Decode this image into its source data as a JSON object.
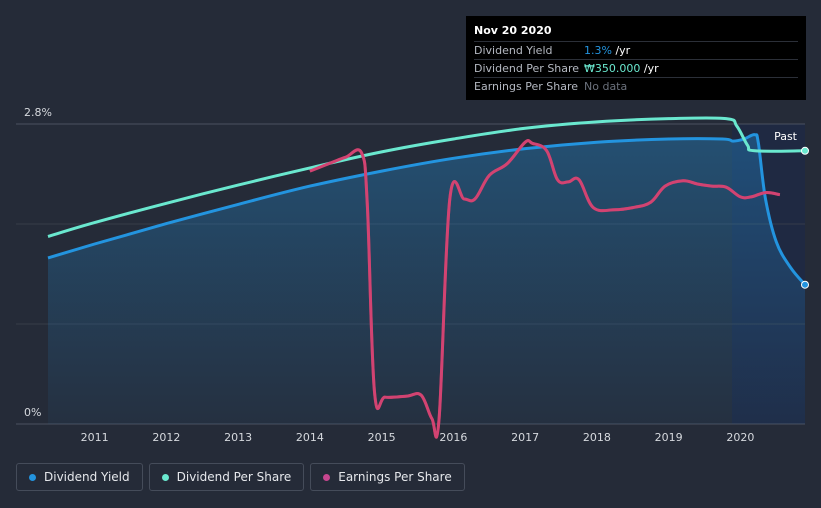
{
  "tooltip": {
    "date": "Nov 20 2020",
    "rows": [
      {
        "label": "Dividend Yield",
        "value": "1.3%",
        "unit": " /yr"
      },
      {
        "label": "Dividend Per Share",
        "value": "₩350.000",
        "unit": " /yr"
      },
      {
        "label": "Earnings Per Share",
        "value": "No data",
        "unit": ""
      }
    ]
  },
  "legend": [
    {
      "label": "Dividend Yield",
      "color": "#2394df"
    },
    {
      "label": "Dividend Per Share",
      "color": "#6ae8cf"
    },
    {
      "label": "Earnings Per Share",
      "color": "#c7468f"
    }
  ],
  "chart_data": {
    "type": "line",
    "title": "",
    "xlabel": "",
    "ylabel": "",
    "past_label": "Past",
    "y_tick_labels": {
      "top": "2.8%",
      "bottom": "0%"
    },
    "ylim": [
      0,
      2.8
    ],
    "xlim": [
      2010.35,
      2020.9
    ],
    "x_ticks": [
      2011,
      2012,
      2013,
      2014,
      2015,
      2016,
      2017,
      2018,
      2019,
      2020
    ],
    "series": [
      {
        "name": "Dividend Yield",
        "color": "#2394df",
        "fill": true,
        "points": [
          [
            2010.35,
            1.55
          ],
          [
            2011,
            1.68
          ],
          [
            2012,
            1.87
          ],
          [
            2013,
            2.05
          ],
          [
            2014,
            2.22
          ],
          [
            2015,
            2.36
          ],
          [
            2016,
            2.48
          ],
          [
            2017,
            2.57
          ],
          [
            2018,
            2.63
          ],
          [
            2019,
            2.66
          ],
          [
            2019.75,
            2.66
          ],
          [
            2019.9,
            2.64
          ],
          [
            2020.05,
            2.66
          ],
          [
            2020.2,
            2.7
          ],
          [
            2020.25,
            2.62
          ],
          [
            2020.35,
            2.1
          ],
          [
            2020.5,
            1.7
          ],
          [
            2020.7,
            1.46
          ],
          [
            2020.9,
            1.3
          ]
        ]
      },
      {
        "name": "Dividend Per Share",
        "color": "#6ae8cf",
        "fill": false,
        "points": [
          [
            2010.35,
            1.75
          ],
          [
            2011,
            1.88
          ],
          [
            2012,
            2.06
          ],
          [
            2013,
            2.23
          ],
          [
            2014,
            2.39
          ],
          [
            2015,
            2.54
          ],
          [
            2016,
            2.66
          ],
          [
            2017,
            2.76
          ],
          [
            2018,
            2.82
          ],
          [
            2019,
            2.85
          ],
          [
            2019.8,
            2.85
          ],
          [
            2019.95,
            2.78
          ],
          [
            2020.1,
            2.6
          ],
          [
            2020.2,
            2.55
          ],
          [
            2020.9,
            2.55
          ]
        ]
      },
      {
        "name": "Earnings Per Share",
        "color": "#c7468f",
        "fill": false,
        "points": [
          [
            2014,
            2.36
          ],
          [
            2014.3,
            2.44
          ],
          [
            2014.5,
            2.49
          ],
          [
            2014.72,
            2.53
          ],
          [
            2014.8,
            2.05
          ],
          [
            2014.9,
            0.3
          ],
          [
            2015.05,
            0.25
          ],
          [
            2015.35,
            0.26
          ],
          [
            2015.55,
            0.27
          ],
          [
            2015.7,
            0.05
          ],
          [
            2015.8,
            0.05
          ],
          [
            2015.95,
            2.1
          ],
          [
            2016.15,
            2.1
          ],
          [
            2016.3,
            2.1
          ],
          [
            2016.5,
            2.32
          ],
          [
            2016.75,
            2.43
          ],
          [
            2017,
            2.63
          ],
          [
            2017.1,
            2.62
          ],
          [
            2017.3,
            2.55
          ],
          [
            2017.45,
            2.28
          ],
          [
            2017.6,
            2.26
          ],
          [
            2017.75,
            2.28
          ],
          [
            2017.95,
            2.02
          ],
          [
            2018.25,
            2.0
          ],
          [
            2018.5,
            2.02
          ],
          [
            2018.75,
            2.07
          ],
          [
            2018.95,
            2.22
          ],
          [
            2019.2,
            2.27
          ],
          [
            2019.4,
            2.24
          ],
          [
            2019.6,
            2.22
          ],
          [
            2019.8,
            2.21
          ],
          [
            2020.0,
            2.12
          ],
          [
            2020.15,
            2.12
          ],
          [
            2020.35,
            2.16
          ],
          [
            2020.55,
            2.14
          ]
        ]
      }
    ]
  }
}
